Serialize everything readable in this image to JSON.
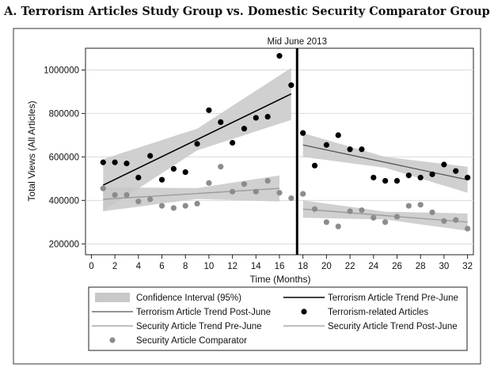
{
  "title": "A. Terrorism Articles Study Group vs. Domestic Security Comparator Group",
  "chart_data": {
    "type": "scatter",
    "xlabel": "Time (Months)",
    "ylabel": "Total Views (All Articles)",
    "xlim": [
      -0.5,
      32.5
    ],
    "ylim": [
      150000,
      1100000
    ],
    "xticks": [
      0,
      2,
      4,
      6,
      8,
      10,
      12,
      14,
      16,
      18,
      20,
      22,
      24,
      26,
      28,
      30,
      32
    ],
    "yticks": [
      200000,
      400000,
      600000,
      800000,
      1000000
    ],
    "ytick_labels": [
      "200000",
      "400000",
      "600000",
      "800000",
      "1000000"
    ],
    "grid": "y",
    "annotation": {
      "text": "Mid June 2013",
      "x": 17.5
    },
    "colors": {
      "terror": "#000000",
      "security": "#8c8c8c",
      "ci": "#c8c8c8"
    },
    "series": [
      {
        "name": "Terrorism-related Articles",
        "x": [
          1,
          2,
          3,
          4,
          5,
          6,
          7,
          8,
          9,
          10,
          11,
          12,
          13,
          14,
          15,
          16,
          17,
          18,
          19,
          20,
          21,
          22,
          23,
          24,
          25,
          26,
          27,
          28,
          29,
          30,
          31,
          32
        ],
        "y": [
          575000,
          575000,
          570000,
          505000,
          605000,
          495000,
          545000,
          530000,
          660000,
          815000,
          760000,
          665000,
          730000,
          780000,
          785000,
          1065000,
          930000,
          710000,
          560000,
          655000,
          700000,
          635000,
          635000,
          505000,
          490000,
          490000,
          515000,
          505000,
          520000,
          565000,
          535000,
          505000
        ]
      },
      {
        "name": "Security Article Comparator",
        "x": [
          1,
          2,
          3,
          4,
          5,
          6,
          7,
          8,
          9,
          10,
          11,
          12,
          13,
          14,
          15,
          16,
          17,
          18,
          19,
          20,
          21,
          22,
          23,
          24,
          25,
          26,
          27,
          28,
          29,
          30,
          31,
          32
        ],
        "y": [
          455000,
          425000,
          425000,
          395000,
          405000,
          375000,
          365000,
          375000,
          385000,
          480000,
          555000,
          440000,
          475000,
          440000,
          490000,
          435000,
          410000,
          430000,
          360000,
          300000,
          280000,
          350000,
          355000,
          320000,
          300000,
          325000,
          375000,
          380000,
          345000,
          305000,
          310000,
          270000
        ]
      }
    ],
    "trends": [
      {
        "name": "Terrorism Article Trend Pre-June",
        "x": [
          1,
          17
        ],
        "y": [
          470000,
          890000
        ],
        "ci_half": [
          [
            1,
            120000
          ],
          [
            9,
            50000
          ],
          [
            17,
            120000
          ]
        ]
      },
      {
        "name": "Terrorism Article Trend Post-June",
        "x": [
          18,
          32
        ],
        "y": [
          655000,
          495000
        ],
        "ci_half": [
          [
            18,
            55000
          ],
          [
            25,
            25000
          ],
          [
            32,
            60000
          ]
        ]
      },
      {
        "name": "Security Article Trend Pre-June",
        "x": [
          1,
          16
        ],
        "y": [
          405000,
          455000
        ],
        "ci_half": [
          [
            1,
            55000
          ],
          [
            9,
            25000
          ],
          [
            16,
            60000
          ]
        ]
      },
      {
        "name": "Security Article Trend Post-June",
        "x": [
          18,
          32
        ],
        "y": [
          360000,
          300000
        ],
        "ci_half": [
          [
            18,
            40000
          ],
          [
            25,
            18000
          ],
          [
            32,
            40000
          ]
        ]
      }
    ],
    "legend": {
      "placement": "bottom",
      "entries": [
        "Confidence Interval (95%)",
        "Terrorism Article Trend Pre-June",
        "Terrorism Article Trend Post-June",
        "Terrorism-related Articles",
        "Security Article Trend Pre-June",
        "Security Article Trend Post-June",
        "Security Article Comparator"
      ]
    }
  }
}
